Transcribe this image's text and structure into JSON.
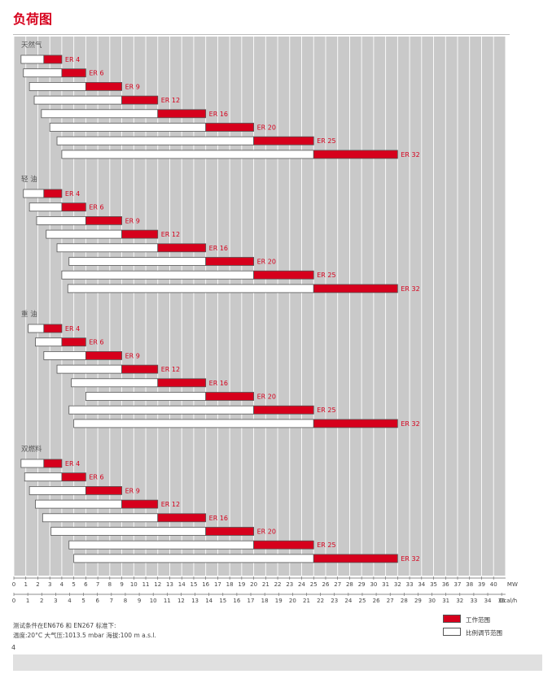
{
  "page_title": "负荷图",
  "page_number": "4",
  "notes": [
    "测试条件在EN676 和 EN267 标准下:",
    "温度:20°C   大气压:1013.5 mbar   海拔:100 m a.s.l."
  ],
  "legend": [
    {
      "label": "工作范围",
      "color": "#d6001c"
    },
    {
      "label": "比例调节范围",
      "color": "#ffffff"
    }
  ],
  "colors": {
    "working": "#d6001c",
    "modulating": "#ffffff",
    "grid_bg": "#c9c9c9",
    "label": "#d6001c"
  },
  "chart_data": {
    "type": "bar",
    "subtype": "horizontal-range",
    "x_axis": {
      "unit": "MW",
      "range": [
        0,
        41
      ],
      "ticks": [
        "0",
        "1",
        "2",
        "3",
        "4",
        "5",
        "6",
        "7",
        "8",
        "9",
        "10",
        "11",
        "12",
        "13",
        "14",
        "15",
        "16",
        "17",
        "18",
        "19",
        "20",
        "21",
        "22",
        "23",
        "24",
        "25",
        "26",
        "27",
        "28",
        "29",
        "30",
        "31",
        "32",
        "33",
        "34",
        "35",
        "36",
        "37",
        "38",
        "39",
        "40"
      ]
    },
    "x_axis_secondary": {
      "unit": "Gcal/h",
      "range": [
        0,
        35.26
      ],
      "ticks": [
        "0",
        "1",
        "2",
        "3",
        "4",
        "5",
        "6",
        "7",
        "8",
        "9",
        "10",
        "11",
        "12",
        "13",
        "14",
        "15",
        "16",
        "17",
        "18",
        "19",
        "20",
        "21",
        "22",
        "23",
        "24",
        "25",
        "26",
        "27",
        "28",
        "29",
        "30",
        "31",
        "32",
        "33",
        "34",
        "35"
      ]
    },
    "grid": true,
    "groups": [
      {
        "name": "天然气",
        "bars": [
          {
            "model": "ER 4",
            "mod_min": 0.6,
            "work_min": 2.5,
            "max": 4
          },
          {
            "model": "ER 6",
            "mod_min": 0.8,
            "work_min": 4,
            "max": 6
          },
          {
            "model": "ER 9",
            "mod_min": 1.3,
            "work_min": 6,
            "max": 9
          },
          {
            "model": "ER 12",
            "mod_min": 1.7,
            "work_min": 9,
            "max": 12
          },
          {
            "model": "ER 16",
            "mod_min": 2.3,
            "work_min": 12,
            "max": 16
          },
          {
            "model": "ER 20",
            "mod_min": 3,
            "work_min": 16,
            "max": 20
          },
          {
            "model": "ER 25",
            "mod_min": 3.6,
            "work_min": 20,
            "max": 25
          },
          {
            "model": "ER 32",
            "mod_min": 4,
            "work_min": 25,
            "max": 32
          }
        ]
      },
      {
        "name": "轻 油",
        "bars": [
          {
            "model": "ER 4",
            "mod_min": 0.8,
            "work_min": 2.5,
            "max": 4
          },
          {
            "model": "ER 6",
            "mod_min": 1.3,
            "work_min": 4,
            "max": 6
          },
          {
            "model": "ER 9",
            "mod_min": 1.9,
            "work_min": 6,
            "max": 9
          },
          {
            "model": "ER 12",
            "mod_min": 2.7,
            "work_min": 9,
            "max": 12
          },
          {
            "model": "ER 16",
            "mod_min": 3.6,
            "work_min": 12,
            "max": 16
          },
          {
            "model": "ER 20",
            "mod_min": 4.6,
            "work_min": 16,
            "max": 20
          },
          {
            "model": "ER 25",
            "mod_min": 4,
            "work_min": 20,
            "max": 25
          },
          {
            "model": "ER 32",
            "mod_min": 4.5,
            "work_min": 25,
            "max": 32
          }
        ]
      },
      {
        "name": "重 油",
        "bars": [
          {
            "model": "ER 4",
            "mod_min": 1.2,
            "work_min": 2.5,
            "max": 4
          },
          {
            "model": "ER 6",
            "mod_min": 1.8,
            "work_min": 4,
            "max": 6
          },
          {
            "model": "ER 9",
            "mod_min": 2.5,
            "work_min": 6,
            "max": 9
          },
          {
            "model": "ER 12",
            "mod_min": 3.6,
            "work_min": 9,
            "max": 12
          },
          {
            "model": "ER 16",
            "mod_min": 4.8,
            "work_min": 12,
            "max": 16
          },
          {
            "model": "ER 20",
            "mod_min": 6,
            "work_min": 16,
            "max": 20
          },
          {
            "model": "ER 25",
            "mod_min": 4.6,
            "work_min": 20,
            "max": 25
          },
          {
            "model": "ER 32",
            "mod_min": 5,
            "work_min": 25,
            "max": 32
          }
        ]
      },
      {
        "name": "双燃料",
        "bars": [
          {
            "model": "ER 4",
            "mod_min": 0.6,
            "work_min": 2.5,
            "max": 4
          },
          {
            "model": "ER 6",
            "mod_min": 0.9,
            "work_min": 4,
            "max": 6
          },
          {
            "model": "ER 9",
            "mod_min": 1.3,
            "work_min": 6,
            "max": 9
          },
          {
            "model": "ER 12",
            "mod_min": 1.8,
            "work_min": 9,
            "max": 12
          },
          {
            "model": "ER 16",
            "mod_min": 2.4,
            "work_min": 12,
            "max": 16
          },
          {
            "model": "ER 20",
            "mod_min": 3.1,
            "work_min": 16,
            "max": 20
          },
          {
            "model": "ER 25",
            "mod_min": 4.6,
            "work_min": 20,
            "max": 25
          },
          {
            "model": "ER 32",
            "mod_min": 5,
            "work_min": 25,
            "max": 32
          }
        ]
      }
    ]
  }
}
